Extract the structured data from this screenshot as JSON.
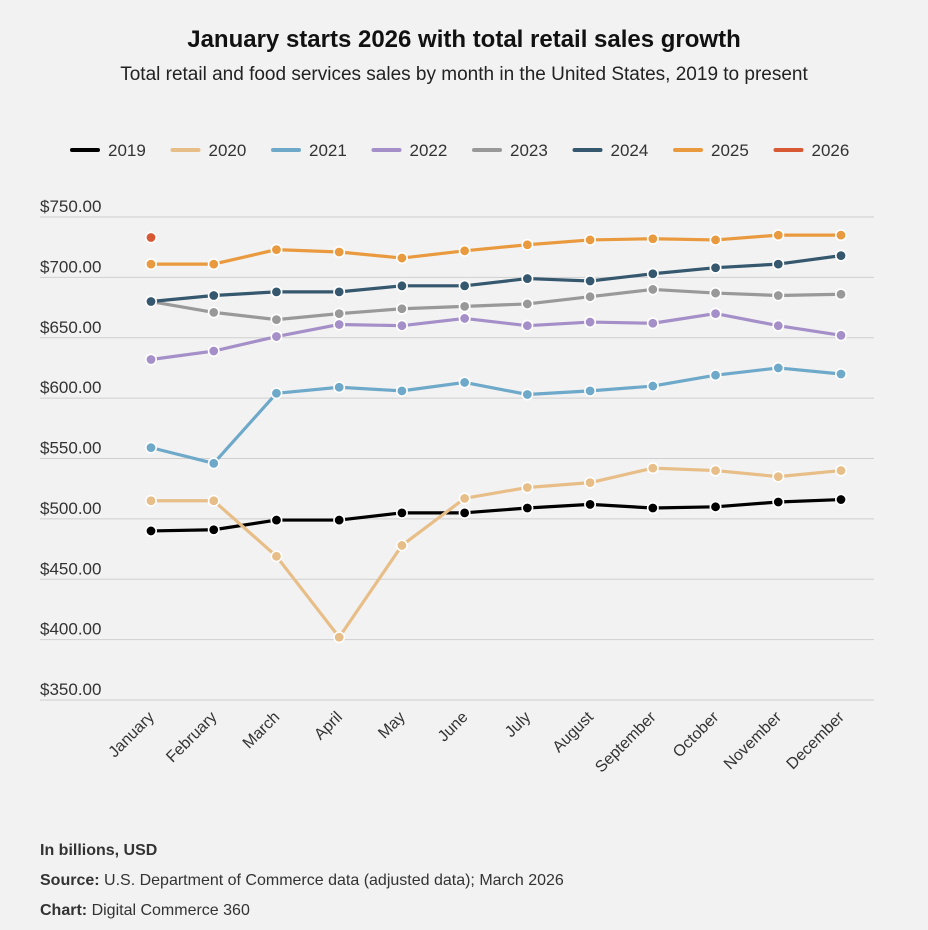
{
  "chart_data": {
    "type": "line",
    "title": "January starts 2026 with total retail sales growth",
    "subtitle": "Total retail and food services sales by month in the United States, 2019 to present",
    "categories": [
      "January",
      "February",
      "March",
      "April",
      "May",
      "June",
      "July",
      "August",
      "September",
      "October",
      "November",
      "December"
    ],
    "ylim": [
      350,
      750
    ],
    "yticks": [
      350,
      400,
      450,
      500,
      550,
      600,
      650,
      700,
      750
    ],
    "ytick_labels": [
      "$350.00",
      "$400.00",
      "$450.00",
      "$500.00",
      "$550.00",
      "$600.00",
      "$650.00",
      "$700.00",
      "$750.00"
    ],
    "legend_position": "top",
    "grid": true,
    "series": [
      {
        "name": "2019",
        "color": "#000000",
        "values": [
          490,
          491,
          499,
          499,
          505,
          505,
          509,
          512,
          509,
          510,
          514,
          516
        ]
      },
      {
        "name": "2020",
        "color": "#e8be88",
        "values": [
          515,
          515,
          469,
          402,
          478,
          517,
          526,
          530,
          542,
          540,
          535,
          540
        ]
      },
      {
        "name": "2021",
        "color": "#6ea9c9",
        "values": [
          559,
          546,
          604,
          609,
          606,
          613,
          603,
          606,
          610,
          619,
          625,
          620
        ]
      },
      {
        "name": "2022",
        "color": "#a58fc8",
        "values": [
          632,
          639,
          651,
          661,
          660,
          666,
          660,
          663,
          662,
          670,
          660,
          652
        ]
      },
      {
        "name": "2023",
        "color": "#999999",
        "values": [
          680,
          671,
          665,
          670,
          674,
          676,
          678,
          684,
          690,
          687,
          685,
          686
        ]
      },
      {
        "name": "2024",
        "color": "#35586e",
        "values": [
          680,
          685,
          688,
          688,
          693,
          693,
          699,
          697,
          703,
          708,
          711,
          718
        ]
      },
      {
        "name": "2025",
        "color": "#ea9a3e",
        "values": [
          711,
          711,
          723,
          721,
          716,
          722,
          727,
          731,
          732,
          731,
          735,
          735
        ]
      },
      {
        "name": "2026",
        "color": "#d85a35",
        "values": [
          733,
          null,
          null,
          null,
          null,
          null,
          null,
          null,
          null,
          null,
          null,
          null
        ]
      }
    ]
  },
  "footer": {
    "units": "In billions, USD",
    "source_label": "Source:",
    "source_text": "U.S. Department of Commerce data (adjusted data); March 2026",
    "chart_label": "Chart:",
    "chart_text": "Digital Commerce 360"
  }
}
